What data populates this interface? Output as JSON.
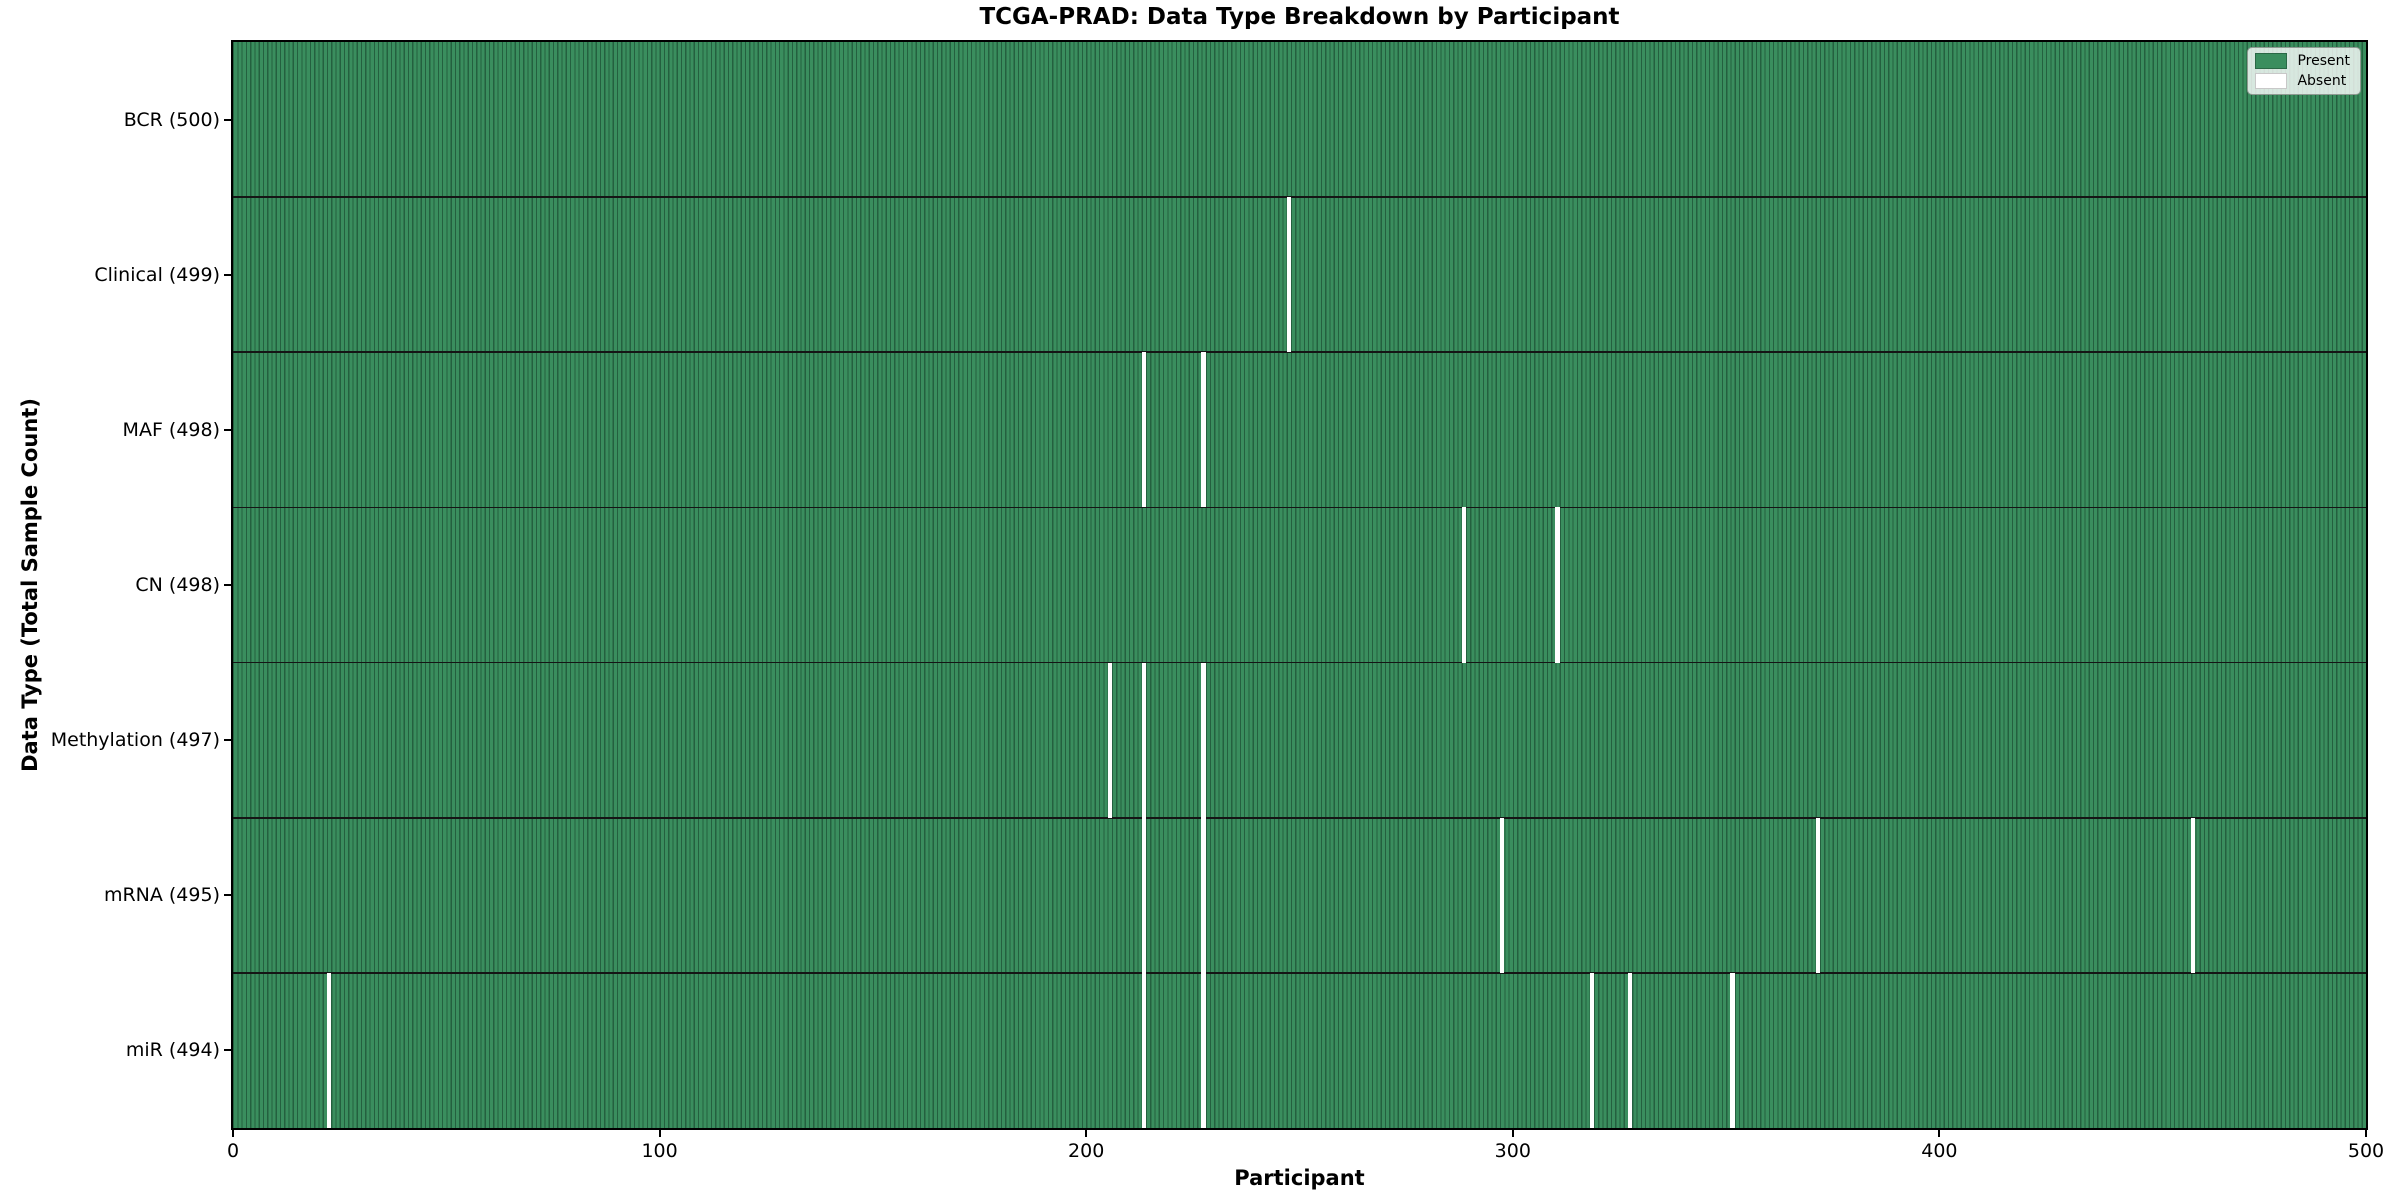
{
  "title": "TCGA-PRAD: Data Type Breakdown by Participant",
  "colors": {
    "present": "#3a8e5e",
    "present_edge": "#24603f",
    "absent": "#ffffff",
    "separator": "#151515",
    "legend_present_border": "#2a6845",
    "legend_absent_border": "#c8c8c8"
  },
  "chart_data": {
    "type": "heatmap",
    "title": "TCGA-PRAD: Data Type Breakdown by Participant",
    "xlabel": "Participant",
    "ylabel": "Data Type (Total Sample Count)",
    "x_range": [
      0,
      500
    ],
    "x_ticks": [
      0,
      100,
      200,
      300,
      400,
      500
    ],
    "n_participants": 500,
    "grid": false,
    "legend_position": "upper right",
    "legend": [
      {
        "label": "Present",
        "color": "#3a8e5e"
      },
      {
        "label": "Absent",
        "color": "#ffffff"
      }
    ],
    "rows": [
      {
        "data_type": "BCR",
        "label": "BCR (500)",
        "total": 500,
        "absent_participants": []
      },
      {
        "data_type": "Clinical",
        "label": "Clinical (499)",
        "total": 499,
        "absent_participants": [
          247
        ]
      },
      {
        "data_type": "MAF",
        "label": "MAF (498)",
        "total": 498,
        "absent_participants": [
          213,
          227
        ]
      },
      {
        "data_type": "CN",
        "label": "CN (498)",
        "total": 498,
        "absent_participants": [
          288,
          310
        ]
      },
      {
        "data_type": "Methylation",
        "label": "Methylation (497)",
        "total": 497,
        "absent_participants": [
          205,
          213,
          227
        ]
      },
      {
        "data_type": "mRNA",
        "label": "mRNA (495)",
        "total": 495,
        "absent_participants": [
          213,
          227,
          297,
          371,
          459
        ]
      },
      {
        "data_type": "miR",
        "label": "miR (494)",
        "total": 494,
        "absent_participants": [
          22,
          213,
          227,
          318,
          327,
          351
        ]
      }
    ]
  }
}
